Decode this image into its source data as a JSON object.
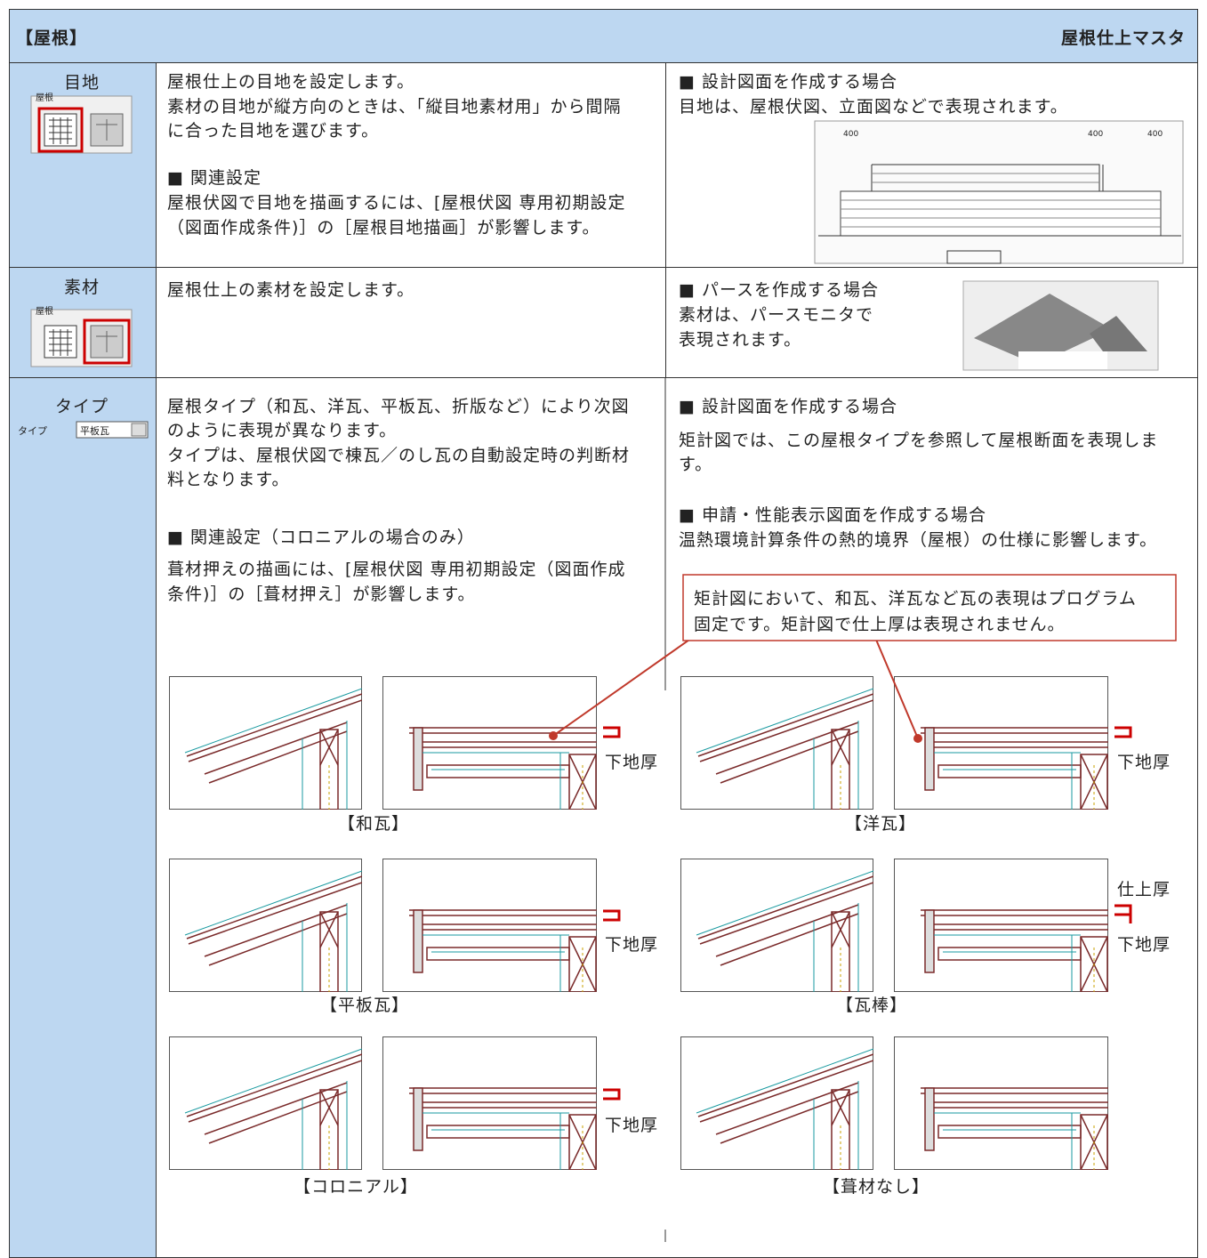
{
  "header": {
    "title": "【屋根】",
    "right": "屋根仕上マスタ"
  },
  "rows": [
    {
      "label": "目地",
      "icon_label": "屋根",
      "middle": [
        "屋根仕上の目地を設定します。",
        "素材の目地が縦方向のときは、「縦目地素材用」から間隔",
        "に合った目地を選びます。",
        "■ 関連設定",
        "屋根伏図で目地を描画するには、[屋根伏図 専用初期設定",
        "（図面作成条件)］の［屋根目地描画］が影響します。"
      ],
      "right": [
        "■ 設計図面を作成する場合",
        "目地は、屋根伏図、立面図などで表現されます。"
      ],
      "image_labels": [
        "400",
        "400",
        "400"
      ]
    },
    {
      "label": "素材",
      "icon_label": "屋根",
      "middle": [
        "屋根仕上の素材を設定します。"
      ],
      "right": [
        "■ パースを作成する場合",
        "素材は、パースモニタで",
        "表現されます。"
      ]
    },
    {
      "label": "タイプ",
      "control_label": "タイプ",
      "control_value": "平板瓦",
      "middle": [
        "屋根タイプ（和瓦、洋瓦、平板瓦、折版など）により次図",
        "のように表現が異なります。",
        "タイプは、屋根伏図で棟瓦／のし瓦の自動設定時の判断材",
        "料となります。",
        "■ 関連設定（コロニアルの場合のみ）",
        "葺材押えの描画には、[屋根伏図 専用初期設定（図面作成",
        "条件)］の［葺材押え］が影響します。"
      ],
      "right": [
        "■ 設計図面を作成する場合",
        "矩計図では、この屋根タイプを参照して屋根断面を表現しま",
        "す。",
        "■ 申請・性能表示図面を作成する場合",
        "温熱環境計算条件の熱的境界（屋根）の仕様に影響します。"
      ],
      "callout": [
        "矩計図において、和瓦、洋瓦など瓦の表現はプログラム",
        "固定です。矩計図で仕上厚は表現されません。"
      ],
      "diagrams": [
        {
          "caption": "【和瓦】",
          "labels": [
            "下地厚"
          ]
        },
        {
          "caption": "【洋瓦】",
          "labels": [
            "下地厚"
          ]
        },
        {
          "caption": "【平板瓦】",
          "labels": [
            "下地厚"
          ]
        },
        {
          "caption": "【瓦棒】",
          "labels": [
            "仕上厚",
            "下地厚"
          ]
        },
        {
          "caption": "【コロニアル】",
          "labels": [
            "下地厚"
          ]
        },
        {
          "caption": "【葺材なし】",
          "labels": []
        }
      ]
    }
  ]
}
